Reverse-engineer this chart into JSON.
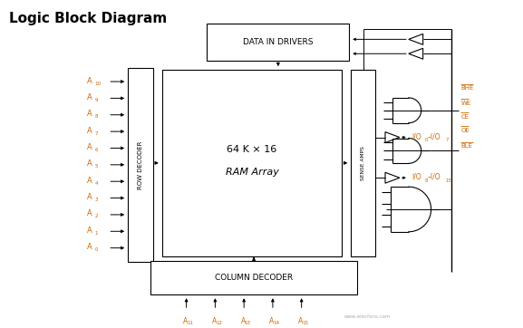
{
  "title": "Logic Block Diagram",
  "title_fontsize": 11,
  "title_fontweight": "bold",
  "bg_color": "#ffffff",
  "line_color": "#000000",
  "orange_color": "#cc6600",
  "blue_color": "#3333cc",
  "watermark": "www.elecfans.com",
  "address_labels": [
    "A10",
    "A9",
    "A8",
    "A7",
    "A6",
    "A5",
    "A4",
    "A3",
    "A2",
    "A1",
    "A0"
  ],
  "col_address_labels": [
    "A11",
    "A12",
    "A13",
    "A14",
    "A15"
  ],
  "control_labels": [
    "BHE",
    "WE",
    "CE",
    "OE",
    "BLE"
  ]
}
